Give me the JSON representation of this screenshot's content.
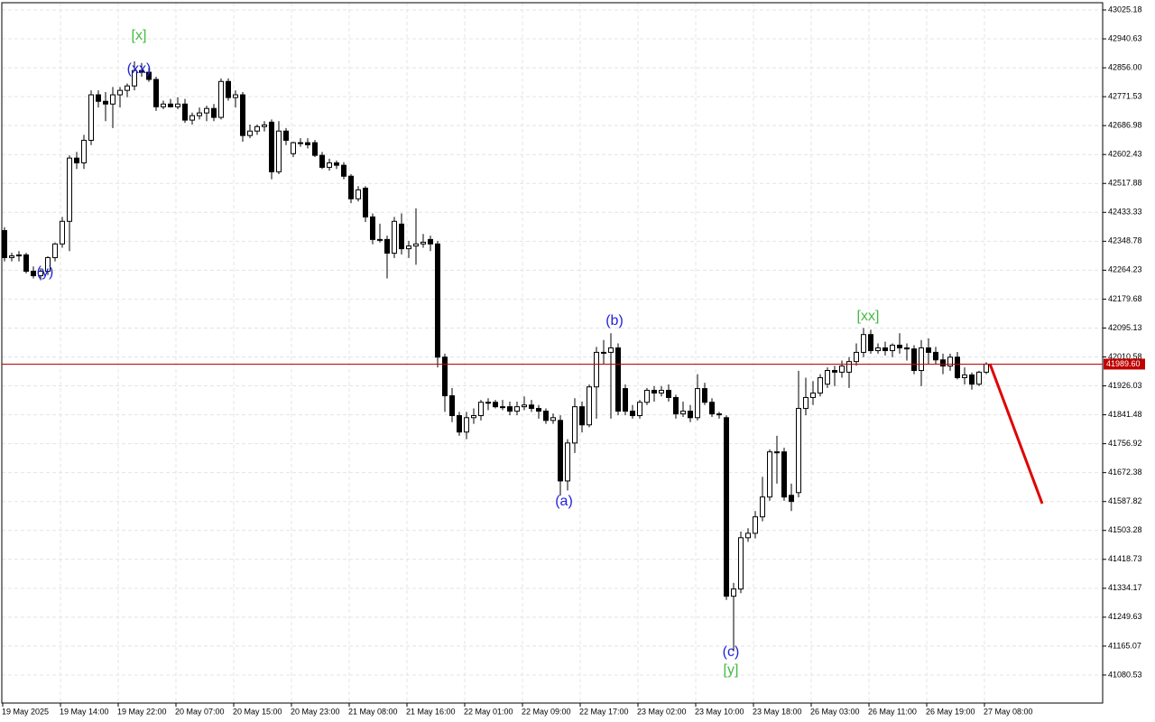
{
  "chart_data": {
    "type": "candlestick",
    "categories": [
      "19 May 2025",
      null,
      null,
      null,
      null,
      null,
      null,
      null,
      "19 May 14:00",
      null,
      null,
      null,
      null,
      null,
      null,
      null,
      "19 May 22:00",
      null,
      null,
      null,
      null,
      null,
      null,
      null,
      "20 May 07:00",
      null,
      null,
      null,
      null,
      null,
      null,
      null,
      "20 May 15:00",
      null,
      null,
      null,
      null,
      null,
      null,
      null,
      "20 May 23:00",
      null,
      null,
      null,
      null,
      null,
      null,
      null,
      "21 May 08:00",
      null,
      null,
      null,
      null,
      null,
      null,
      null,
      "21 May 16:00",
      null,
      null,
      null,
      null,
      null,
      null,
      null,
      "22 May 01:00",
      null,
      null,
      null,
      null,
      null,
      null,
      null,
      "22 May 09:00",
      null,
      null,
      null,
      null,
      null,
      null,
      null,
      "22 May 17:00",
      null,
      null,
      null,
      null,
      null,
      null,
      null,
      "23 May 02:00",
      null,
      null,
      null,
      null,
      null,
      null,
      null,
      "23 May 10:00",
      null,
      null,
      null,
      null,
      null,
      null,
      null,
      "23 May 18:00",
      null,
      null,
      null,
      null,
      null,
      null,
      null,
      "26 May 03:00",
      null,
      null,
      null,
      null,
      null,
      null,
      null,
      "26 May 11:00",
      null,
      null,
      null,
      null,
      null,
      null,
      null,
      "26 May 19:00",
      null,
      null,
      null,
      null,
      null,
      null,
      null,
      "27 May 08:00"
    ],
    "open": [
      42380,
      42301,
      42306,
      42309,
      42261,
      42248,
      42261,
      42301,
      42341,
      42407,
      42592,
      42578,
      42644,
      42777,
      42758,
      42750,
      42777,
      42790,
      42803,
      42848,
      42843,
      42822,
      42742,
      42750,
      42742,
      42750,
      42703,
      42716,
      42724,
      42737,
      42711,
      42816,
      42769,
      42777,
      42658,
      42671,
      42684,
      42697,
      42552,
      42671,
      42605,
      42637,
      42637,
      42637,
      42600,
      42565,
      42578,
      42571,
      42539,
      42473,
      42504,
      42420,
      42354,
      42354,
      42314,
      42399,
      42327,
      42335,
      42341,
      42354,
      42341,
      42010,
      41897,
      41839,
      41791,
      41833,
      41839,
      41878,
      41878,
      41865,
      41865,
      41852,
      41865,
      41870,
      41860,
      41852,
      41825,
      41825,
      41648,
      41759,
      41865,
      41812,
      41923,
      42024,
      42024,
      42037,
      41918,
      41852,
      41839,
      41878,
      41913,
      41905,
      41913,
      41892,
      41844,
      41852,
      41833,
      41918,
      41878,
      41844,
      41833,
      41311,
      41332,
      41482,
      41495,
      41543,
      41601,
      41733,
      41733,
      41606,
      41614,
      41860,
      41892,
      41905,
      41931,
      41971,
      41966,
      41966,
      41997,
      42024,
      42076,
      42029,
      42037,
      42029,
      42045,
      42037,
      42034,
      41971,
      42037,
      42024,
      42002,
      41984,
      42010,
      41950,
      41958,
      41931,
      41966
    ],
    "high": [
      42390,
      42315,
      42320,
      42315,
      42275,
      42270,
      42305,
      42345,
      42420,
      42600,
      42610,
      42660,
      42790,
      42790,
      42785,
      42800,
      42800,
      42810,
      42875,
      42870,
      42855,
      42830,
      42760,
      42765,
      42770,
      42765,
      42725,
      42740,
      42745,
      42750,
      42825,
      42825,
      42790,
      42785,
      42690,
      42690,
      42700,
      42705,
      42700,
      42680,
      42640,
      42650,
      42650,
      42645,
      42610,
      42590,
      42585,
      42580,
      42545,
      42510,
      42510,
      42430,
      42400,
      42365,
      42420,
      42430,
      42350,
      42445,
      42370,
      42365,
      42350,
      42020,
      41920,
      41850,
      41850,
      41860,
      41885,
      41890,
      41885,
      41885,
      41880,
      41880,
      41895,
      41885,
      41870,
      41860,
      41845,
      41840,
      41770,
      41890,
      41880,
      41930,
      42040,
      42060,
      42080,
      42050,
      41930,
      41870,
      41885,
      41920,
      41925,
      41925,
      41930,
      41900,
      41880,
      41870,
      41960,
      41935,
      41890,
      41850,
      41840,
      41350,
      41500,
      41510,
      41560,
      41660,
      41740,
      41780,
      41745,
      41640,
      41970,
      41950,
      41940,
      41960,
      41980,
      41985,
      42000,
      42010,
      42050,
      42095,
      42090,
      42050,
      42055,
      42050,
      42080,
      42050,
      42045,
      42060,
      42065,
      42040,
      42020,
      42020,
      42025,
      41980,
      41965,
      41970,
      41995
    ],
    "low": [
      42290,
      42290,
      42290,
      42255,
      42240,
      42235,
      42250,
      42290,
      42330,
      42320,
      42560,
      42560,
      42630,
      42740,
      42700,
      42680,
      42740,
      42770,
      42790,
      42830,
      42815,
      42730,
      42735,
      42740,
      42735,
      42695,
      42690,
      42705,
      42700,
      42700,
      42705,
      42760,
      42740,
      42640,
      42650,
      42660,
      42670,
      42530,
      42545,
      42630,
      42595,
      42625,
      42620,
      42595,
      42560,
      42555,
      42560,
      42530,
      42460,
      42465,
      42405,
      42340,
      42345,
      42240,
      42300,
      42310,
      42300,
      42280,
      42330,
      42320,
      41980,
      41850,
      41820,
      41780,
      41770,
      41815,
      41825,
      41855,
      41860,
      41855,
      41840,
      41840,
      41855,
      41850,
      41830,
      41815,
      41815,
      41605,
      41620,
      41730,
      41790,
      41805,
      41830,
      41990,
      41830,
      41840,
      41840,
      41830,
      41830,
      41870,
      41880,
      41895,
      41880,
      41830,
      41835,
      41820,
      41825,
      41870,
      41835,
      41830,
      41300,
      41150,
      41320,
      41470,
      41480,
      41530,
      41590,
      41640,
      41590,
      41560,
      41600,
      41840,
      41870,
      41895,
      41920,
      41925,
      41950,
      41920,
      41985,
      42010,
      42020,
      42020,
      42015,
      42010,
      42020,
      42000,
      41960,
      41925,
      41990,
      41990,
      41960,
      41970,
      41945,
      41930,
      41915,
      41925,
      41960
    ],
    "close": [
      42301,
      42306,
      42309,
      42261,
      42248,
      42261,
      42301,
      42341,
      42407,
      42592,
      42578,
      42644,
      42777,
      42758,
      42750,
      42777,
      42790,
      42803,
      42848,
      42843,
      42822,
      42742,
      42750,
      42742,
      42750,
      42703,
      42716,
      42724,
      42737,
      42711,
      42816,
      42769,
      42777,
      42658,
      42671,
      42684,
      42689,
      42552,
      42671,
      42644,
      42637,
      42637,
      42631,
      42600,
      42565,
      42578,
      42571,
      42539,
      42473,
      42499,
      42420,
      42354,
      42354,
      42314,
      42407,
      42327,
      42335,
      42341,
      42346,
      42341,
      42010,
      41897,
      41839,
      41791,
      41833,
      41839,
      41878,
      41878,
      41865,
      41865,
      41852,
      41865,
      41870,
      41860,
      41852,
      41825,
      41833,
      41648,
      41759,
      41865,
      41812,
      41923,
      42024,
      42024,
      42037,
      41852,
      41852,
      41839,
      41878,
      41913,
      41905,
      41913,
      41892,
      41844,
      41852,
      41833,
      41918,
      41878,
      41844,
      41844,
      41311,
      41332,
      41482,
      41495,
      41543,
      41601,
      41733,
      41733,
      41601,
      41588,
      41860,
      41892,
      41905,
      41950,
      41971,
      41966,
      41984,
      41997,
      42024,
      42076,
      42029,
      42037,
      42029,
      42045,
      42037,
      42034,
      41971,
      42037,
      42024,
      42002,
      41984,
      42010,
      41950,
      41958,
      41931,
      41966,
      41989.6
    ],
    "up_color": "#ffffff",
    "down_color": "#000000",
    "ylim": [
      40998.6,
      43046.3
    ],
    "yticks": [
      43025.18,
      42940.63,
      {
        "value": 42856.0,
        "label": "42856.00"
      },
      42771.53,
      42686.98,
      42602.43,
      42517.88,
      42433.33,
      42348.78,
      42264.23,
      42179.68,
      42095.13,
      42010.58,
      41926.03,
      41841.48,
      41756.92,
      41672.38,
      41587.82,
      41503.28,
      41418.73,
      41334.17,
      41249.63,
      41165.07,
      41080.53
    ],
    "grid": true,
    "price_line": {
      "value": 41989.6,
      "label": "41989.60",
      "color": "#c00000"
    },
    "annotations": [
      {
        "text": "[x]",
        "color": "#44bb44"
      },
      {
        "text": "(xx)",
        "color": "#2222dd"
      },
      {
        "text": "(y)",
        "color": "#2222dd"
      },
      {
        "text": "(a)",
        "color": "#2222dd"
      },
      {
        "text": "(b)",
        "color": "#2222dd"
      },
      {
        "text": "[xx]",
        "color": "#44bb44"
      },
      {
        "text": "(c)",
        "color": "#2222dd"
      },
      {
        "text": "[y]",
        "color": "#44bb44"
      }
    ]
  }
}
